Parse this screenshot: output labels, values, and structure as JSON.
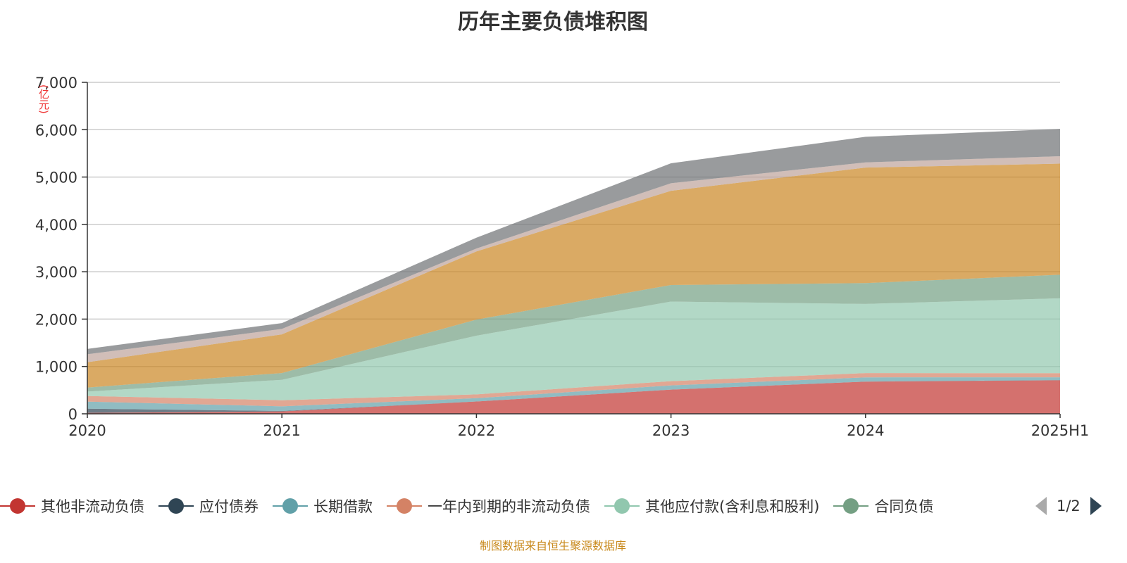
{
  "title": "历年主要负债堆积图",
  "footer": "制图数据来自恒生聚源数据库",
  "legend_pager": "1/2",
  "chart_data": {
    "type": "area",
    "stacked": true,
    "title": "历年主要负债堆积图",
    "ylabel": "(亿元)",
    "ylim": [
      0,
      7000
    ],
    "yticks": [
      "0",
      "1,000",
      "2,000",
      "3,000",
      "4,000",
      "5,000",
      "6,000",
      "7,000"
    ],
    "grid": true,
    "legend_position": "bottom",
    "categories": [
      "2020",
      "2021",
      "2022",
      "2023",
      "2024",
      "2025H1"
    ],
    "series": [
      {
        "name": "其他非流动负债",
        "color": "#c23531",
        "values": [
          20,
          50,
          260,
          510,
          680,
          707
        ]
      },
      {
        "name": "应付债券",
        "color": "#2f4554",
        "values": [
          89,
          9,
          0,
          0,
          0,
          5
        ]
      },
      {
        "name": "长期借款",
        "color": "#61a0a8",
        "values": [
          148,
          99,
          70,
          90,
          90,
          59
        ]
      },
      {
        "name": "一年内到期的非流动负债",
        "color": "#d48265",
        "values": [
          119,
          129,
          80,
          90,
          90,
          87
        ]
      },
      {
        "name": "其他应付款(含利息和股利)",
        "color": "#91c7ae",
        "values": [
          94,
          431,
          1240,
          1680,
          1460,
          1581
        ]
      },
      {
        "name": "合同负债",
        "color": "#749f83",
        "values": [
          84,
          143,
          340,
          350,
          440,
          498
        ]
      },
      {
        "color": "#ca8622",
        "values": [
          535,
          817,
          1440,
          1990,
          2440,
          2346
        ]
      },
      {
        "color": "#bda29a",
        "values": [
          168,
          114,
          60,
          160,
          110,
          157
        ]
      },
      {
        "color": "#6e7074",
        "values": [
          114,
          124,
          230,
          420,
          540,
          575
        ]
      }
    ]
  }
}
